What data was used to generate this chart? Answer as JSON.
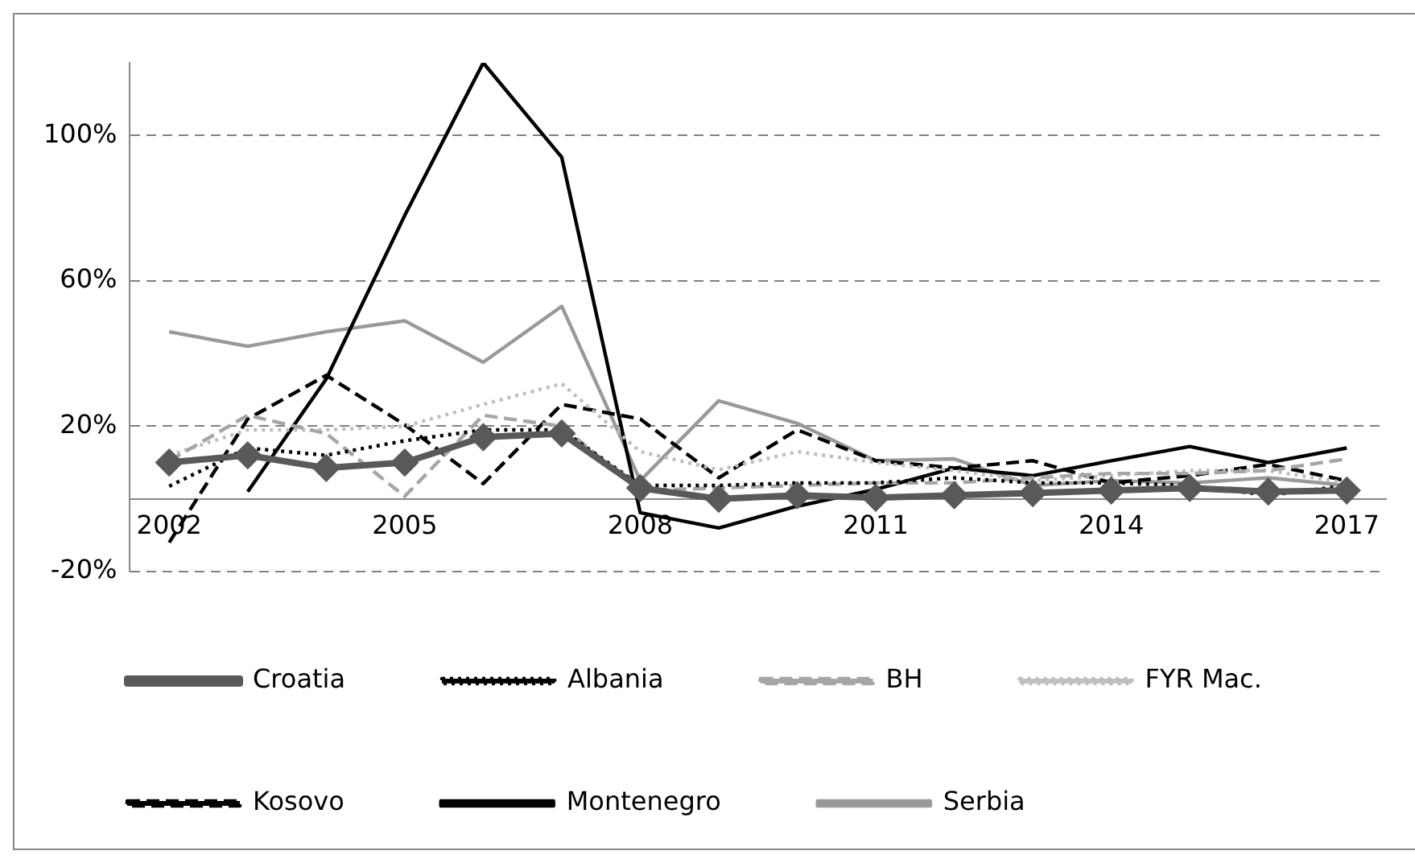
{
  "chart_data": {
    "type": "line",
    "categories": [
      "2002",
      null,
      null,
      "2005",
      null,
      null,
      "2008",
      null,
      null,
      "2011",
      null,
      null,
      "2014",
      null,
      null,
      "2017"
    ],
    "series": [
      {
        "name": "Croatia",
        "color": "#595959",
        "marker": "diamond",
        "line_style": "solid",
        "values": [
          10,
          12,
          8.5,
          10,
          17,
          18,
          3,
          0,
          1,
          0.3,
          1,
          1.6,
          2.3,
          3,
          2,
          2.3
        ]
      },
      {
        "name": "Albania",
        "color": "#000000",
        "marker": "none",
        "line_style": "dotted",
        "values": [
          3.5,
          14,
          12,
          16,
          19,
          19,
          3.7,
          3.7,
          4.4,
          4.4,
          5.8,
          4.4,
          4.4,
          3.7,
          1,
          3.7
        ]
      },
      {
        "name": "BH",
        "color": "#a6a6a6",
        "marker": "none",
        "line_style": "dashed",
        "values": [
          10.5,
          23,
          18,
          0.7,
          23,
          20,
          2.3,
          3,
          3.7,
          4.4,
          4.4,
          5.8,
          7,
          7,
          7.8,
          11
        ]
      },
      {
        "name": "FYR Mac.",
        "color": "#bfbfbf",
        "marker": "none",
        "line_style": "dotted",
        "values": [
          12,
          19,
          19,
          20,
          26,
          31.7,
          13,
          8,
          13,
          10,
          7.8,
          5,
          6.4,
          7.8,
          7.8,
          4.4
        ]
      },
      {
        "name": "Kosovo",
        "color": "#000000",
        "marker": "none",
        "line_style": "dashed",
        "values": [
          -12,
          22,
          34,
          20.4,
          4.2,
          26,
          22,
          5.8,
          19,
          10.5,
          8.5,
          10.5,
          4.4,
          6.4,
          9.5,
          5
        ]
      },
      {
        "name": "Montenegro",
        "color": "#000000",
        "marker": "none",
        "line_style": "solid",
        "values": [
          null,
          2,
          33,
          78,
          120,
          94,
          -3.8,
          -8,
          -2,
          2.6,
          8.5,
          6.4,
          10.5,
          14.4,
          10,
          14
        ]
      },
      {
        "name": "Serbia",
        "color": "#999999",
        "marker": "none",
        "line_style": "solid",
        "values": [
          46,
          42,
          46,
          49,
          37.6,
          53,
          5,
          27,
          20.8,
          10.5,
          11,
          3.7,
          5,
          4.4,
          5.8,
          3.7
        ]
      }
    ],
    "ylim": [
      -20,
      120
    ],
    "yticks": [
      {
        "value": -20,
        "label": "-20%"
      },
      {
        "value": 20,
        "label": "20%"
      },
      {
        "value": 60,
        "label": "60%"
      },
      {
        "value": 100,
        "label": "100%"
      }
    ],
    "grid": "y",
    "legend": "bottom"
  }
}
